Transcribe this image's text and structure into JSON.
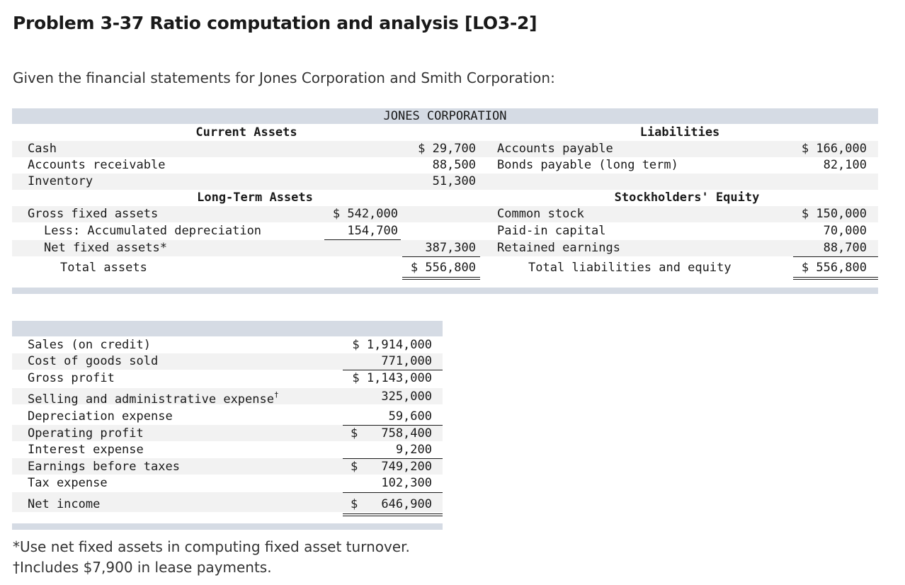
{
  "title": "Problem 3-37 Ratio computation and analysis [LO3-2]",
  "intro": "Given the financial statements for Jones Corporation and Smith Corporation:",
  "balance_sheet": {
    "company": "JONES CORPORATION",
    "current_assets_header": "Current Assets",
    "liabilities_header": "Liabilities",
    "long_term_assets_header": "Long-Term Assets",
    "equity_header": "Stockholders' Equity",
    "assets": [
      {
        "label": "Cash",
        "amount": "$ 29,700"
      },
      {
        "label": "Accounts receivable",
        "amount": "88,500"
      },
      {
        "label": "Inventory",
        "amount": "51,300"
      }
    ],
    "liabilities": [
      {
        "label": "Accounts payable",
        "amount": "$ 166,000"
      },
      {
        "label": "Bonds payable (long term)",
        "amount": "82,100"
      }
    ],
    "gross_fixed": {
      "label": "Gross fixed assets",
      "amount": "$ 542,000"
    },
    "accum_dep": {
      "label": "Less: Accumulated depreciation",
      "amount": "154,700"
    },
    "net_fixed": {
      "label": "Net fixed assets*",
      "amount": "387,300"
    },
    "total_assets": {
      "label": "Total assets",
      "amount": "$ 556,800"
    },
    "equity": [
      {
        "label": "Common stock",
        "amount": "$ 150,000"
      },
      {
        "label": "Paid-in capital",
        "amount": "70,000"
      },
      {
        "label": "Retained earnings",
        "amount": "88,700"
      }
    ],
    "total_liab_equity": {
      "label": "Total liabilities and equity",
      "amount": "$ 556,800"
    }
  },
  "income_statement": [
    {
      "label": "Sales (on credit)",
      "dollar": "",
      "amount": "$ 1,914,000"
    },
    {
      "label": "Cost of goods sold",
      "dollar": "",
      "amount": "771,000"
    },
    {
      "label": "Gross profit",
      "dollar": "",
      "amount": "$ 1,143,000"
    },
    {
      "label": "Selling and administrative expense",
      "sup": "†",
      "dollar": "",
      "amount": "325,000"
    },
    {
      "label": "Depreciation expense",
      "dollar": "",
      "amount": "59,600"
    },
    {
      "label": "Operating profit",
      "dollar": "$",
      "amount": "758,400"
    },
    {
      "label": "Interest expense",
      "dollar": "",
      "amount": "9,200"
    },
    {
      "label": "Earnings before taxes",
      "dollar": "$",
      "amount": "749,200"
    },
    {
      "label": "Tax expense",
      "dollar": "",
      "amount": "102,300"
    },
    {
      "label": "Net income",
      "dollar": "$",
      "amount": "646,900"
    }
  ],
  "footnotes": [
    "*Use net fixed assets in computing fixed asset turnover.",
    "†Includes $7,900 in lease payments."
  ]
}
